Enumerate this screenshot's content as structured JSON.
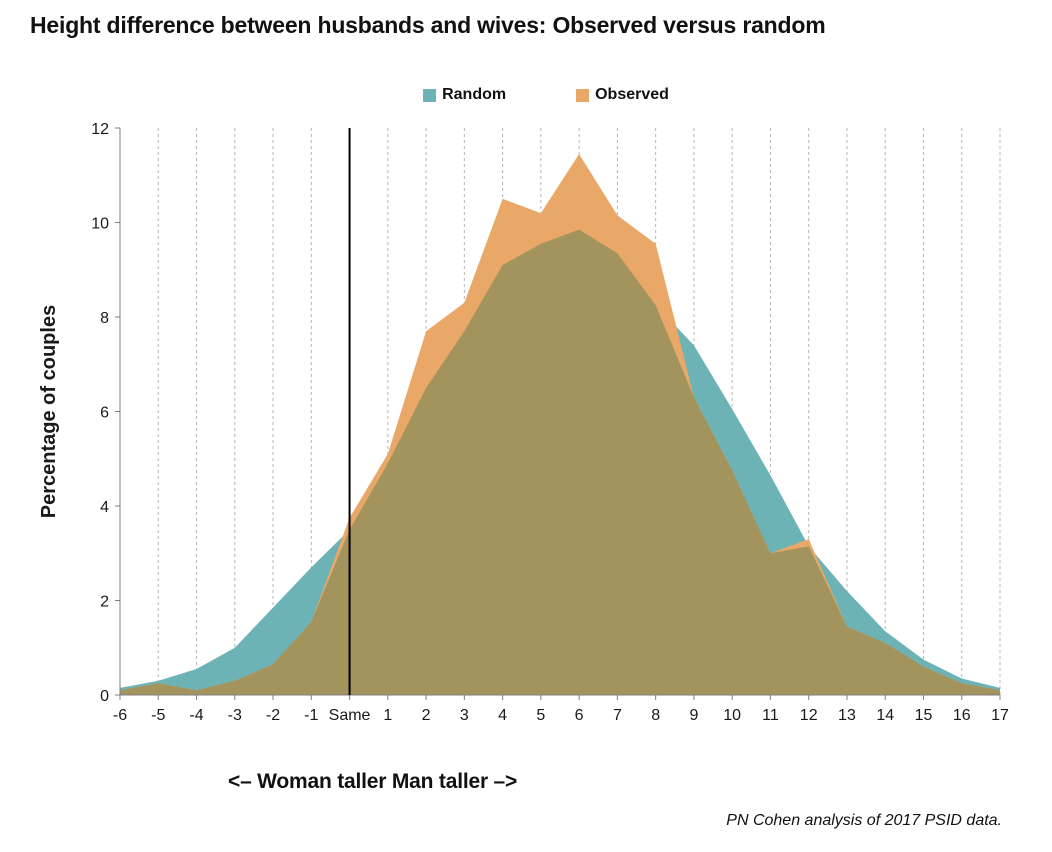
{
  "title": "Height difference between husbands and wives: Observed versus random",
  "legend": {
    "random_label": "Random",
    "observed_label": "Observed"
  },
  "x_annotation": "<– Woman taller  Man taller –>",
  "footer": "PN Cohen analysis of 2017 PSID data.",
  "chart_data": {
    "type": "area",
    "title": "Height difference between husbands and wives: Observed versus random",
    "categories": [
      "-6",
      "-5",
      "-4",
      "-3",
      "-2",
      "-1",
      "Same",
      "1",
      "2",
      "3",
      "4",
      "5",
      "6",
      "7",
      "8",
      "9",
      "10",
      "11",
      "12",
      "13",
      "14",
      "15",
      "16",
      "17"
    ],
    "series": [
      {
        "name": "Random",
        "color": "#6db3b5",
        "values": [
          0.15,
          0.3,
          0.55,
          1.0,
          1.85,
          2.7,
          3.5,
          4.9,
          6.5,
          7.7,
          9.1,
          9.55,
          9.85,
          9.35,
          8.25,
          7.4,
          6.05,
          4.65,
          3.15,
          2.2,
          1.35,
          0.75,
          0.35,
          0.15
        ]
      },
      {
        "name": "Observed",
        "color": "#e9a868",
        "values": [
          0.1,
          0.25,
          0.1,
          0.3,
          0.65,
          1.55,
          3.75,
          5.1,
          7.7,
          8.3,
          10.5,
          10.2,
          11.45,
          10.15,
          9.55,
          6.3,
          4.75,
          3.0,
          3.3,
          1.45,
          1.1,
          0.6,
          0.25,
          0.1
        ]
      }
    ],
    "overlap_color": "#a3945e",
    "xlabel": "<– Woman taller  Man taller –>",
    "ylabel": "Percentage of couples",
    "ylim": [
      0,
      12
    ],
    "yticks": [
      0,
      2,
      4,
      6,
      8,
      10,
      12
    ],
    "grid": "vertical-dashed",
    "legend_position": "top",
    "vline_at": "Same",
    "vline_color": "#000000",
    "source_note": "PN Cohen analysis of 2017 PSID data."
  }
}
